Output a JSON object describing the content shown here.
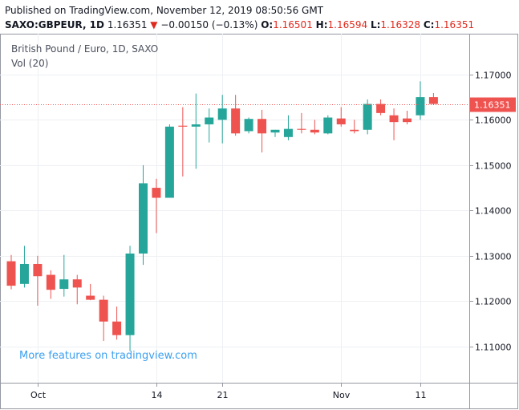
{
  "header": {
    "published": "Published on TradingView.com, November 12, 2019 08:50:56 GMT",
    "symbol": "SAXO:GBPEUR, 1D",
    "last": "1.16351",
    "change_arrow": "▼",
    "change": "−0.00150 (−0.13%)",
    "open_label": "O:",
    "open": "1.16501",
    "high_label": "H:",
    "high": "1.16594",
    "low_label": "L:",
    "low": "1.16328",
    "close_label": "C:",
    "close": "1.16351"
  },
  "legend": {
    "title": "British Pound / Euro, 1D, SAXO",
    "vol": "Vol (20)"
  },
  "promo": "More features on tradingview.com",
  "colors": {
    "up": "#26a69a",
    "down": "#ef5350",
    "last_price_line": "#ef5350",
    "promo": "#3ca0f0"
  },
  "chart_data": {
    "type": "candlestick",
    "y_range": [
      1.102,
      1.179
    ],
    "y_ticks": [
      "1.17000",
      "1.16000",
      "1.15000",
      "1.14000",
      "1.13000",
      "1.12000",
      "1.11000"
    ],
    "y_tick_values": [
      1.17,
      1.16,
      1.15,
      1.14,
      1.13,
      1.12,
      1.11
    ],
    "x_ticks": [
      {
        "label": "Oct",
        "index": 2
      },
      {
        "label": "14",
        "index": 11
      },
      {
        "label": "21",
        "index": 16
      },
      {
        "label": "Nov",
        "index": 25
      },
      {
        "label": "11",
        "index": 31
      }
    ],
    "last_price": 1.16351,
    "last_price_label": "1.16351",
    "candles": [
      {
        "o": 1.1288,
        "h": 1.1302,
        "l": 1.1226,
        "c": 1.1234
      },
      {
        "o": 1.1238,
        "h": 1.1322,
        "l": 1.123,
        "c": 1.1282
      },
      {
        "o": 1.1282,
        "h": 1.13,
        "l": 1.119,
        "c": 1.1255
      },
      {
        "o": 1.1258,
        "h": 1.1268,
        "l": 1.1205,
        "c": 1.1225
      },
      {
        "o": 1.1227,
        "h": 1.1302,
        "l": 1.121,
        "c": 1.1248
      },
      {
        "o": 1.1248,
        "h": 1.1258,
        "l": 1.1193,
        "c": 1.123
      },
      {
        "o": 1.1212,
        "h": 1.1238,
        "l": 1.1202,
        "c": 1.1203
      },
      {
        "o": 1.1203,
        "h": 1.1212,
        "l": 1.1112,
        "c": 1.1155
      },
      {
        "o": 1.1155,
        "h": 1.1188,
        "l": 1.1115,
        "c": 1.1125
      },
      {
        "o": 1.1125,
        "h": 1.1322,
        "l": 1.109,
        "c": 1.1305
      },
      {
        "o": 1.1305,
        "h": 1.15,
        "l": 1.128,
        "c": 1.146
      },
      {
        "o": 1.145,
        "h": 1.147,
        "l": 1.135,
        "c": 1.1428
      },
      {
        "o": 1.1428,
        "h": 1.159,
        "l": 1.1428,
        "c": 1.1585
      },
      {
        "o": 1.1587,
        "h": 1.1628,
        "l": 1.1475,
        "c": 1.1585
      },
      {
        "o": 1.1585,
        "h": 1.1658,
        "l": 1.1492,
        "c": 1.159
      },
      {
        "o": 1.159,
        "h": 1.1625,
        "l": 1.155,
        "c": 1.1605
      },
      {
        "o": 1.16,
        "h": 1.1655,
        "l": 1.1548,
        "c": 1.1625
      },
      {
        "o": 1.1625,
        "h": 1.1655,
        "l": 1.1565,
        "c": 1.157
      },
      {
        "o": 1.1575,
        "h": 1.1605,
        "l": 1.157,
        "c": 1.1602
      },
      {
        "o": 1.1602,
        "h": 1.1622,
        "l": 1.1528,
        "c": 1.157
      },
      {
        "o": 1.1572,
        "h": 1.1578,
        "l": 1.1562,
        "c": 1.1578
      },
      {
        "o": 1.1562,
        "h": 1.161,
        "l": 1.1555,
        "c": 1.158
      },
      {
        "o": 1.158,
        "h": 1.1615,
        "l": 1.157,
        "c": 1.1578
      },
      {
        "o": 1.1578,
        "h": 1.16,
        "l": 1.1568,
        "c": 1.1572
      },
      {
        "o": 1.157,
        "h": 1.161,
        "l": 1.1568,
        "c": 1.1605
      },
      {
        "o": 1.1603,
        "h": 1.1628,
        "l": 1.1585,
        "c": 1.159
      },
      {
        "o": 1.1578,
        "h": 1.16,
        "l": 1.157,
        "c": 1.1575
      },
      {
        "o": 1.1578,
        "h": 1.1645,
        "l": 1.1568,
        "c": 1.1635
      },
      {
        "o": 1.1635,
        "h": 1.1645,
        "l": 1.161,
        "c": 1.1615
      },
      {
        "o": 1.161,
        "h": 1.1625,
        "l": 1.1555,
        "c": 1.1595
      },
      {
        "o": 1.1603,
        "h": 1.162,
        "l": 1.159,
        "c": 1.1595
      },
      {
        "o": 1.161,
        "h": 1.1685,
        "l": 1.16,
        "c": 1.165
      },
      {
        "o": 1.165,
        "h": 1.1659,
        "l": 1.1633,
        "c": 1.1635
      }
    ]
  }
}
